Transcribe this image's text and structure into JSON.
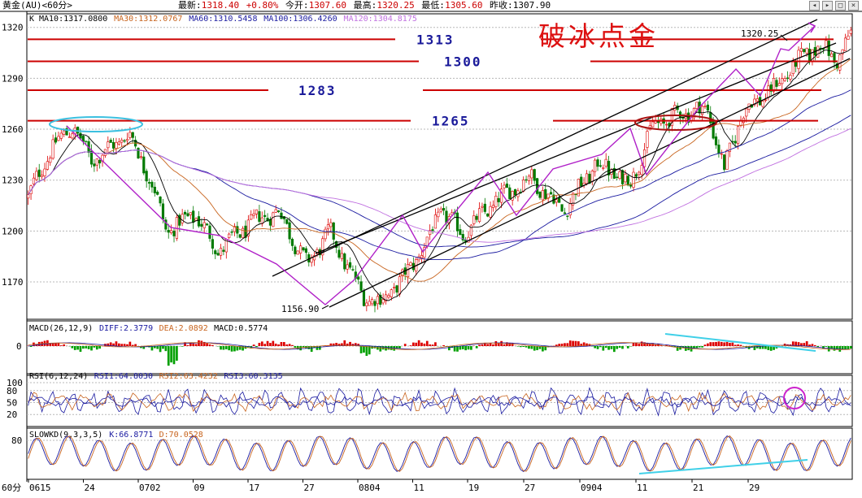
{
  "header": {
    "instrument": "黄金(AU)<60分>",
    "quote_items": [
      {
        "label": "最新:",
        "value": "1318.40",
        "color": "#cc0000"
      },
      {
        "label": "",
        "value": "+0.80%",
        "color": "#cc0000"
      },
      {
        "label": "今开:",
        "value": "1307.60",
        "color": "#cc0000"
      },
      {
        "label": "最高:",
        "value": "1320.25",
        "color": "#cc0000"
      },
      {
        "label": "最低:",
        "value": "1305.60",
        "color": "#cc0000"
      },
      {
        "label": "昨收:",
        "value": "1307.90",
        "color": "#000000"
      }
    ],
    "window_buttons": [
      "◂",
      "▸",
      "□",
      "×"
    ]
  },
  "chart_data": {
    "type": "candlestick",
    "price_panel": {
      "label": "K",
      "ma_legend": [
        {
          "name": "MA10",
          "value": "1317.0800",
          "color": "#000000"
        },
        {
          "name": "MA30",
          "value": "1312.0767",
          "color": "#c8641e"
        },
        {
          "name": "MA60",
          "value": "1310.5458",
          "color": "#1a1aa0"
        },
        {
          "name": "MA100",
          "value": "1306.4260",
          "color": "#1a1aa0"
        },
        {
          "name": "MA120",
          "value": "1304.8175",
          "color": "#c070e0"
        }
      ],
      "y_ticks": [
        1170,
        1200,
        1230,
        1260,
        1290,
        1320
      ],
      "ylim": [
        1148,
        1328
      ],
      "bar_count": 300,
      "price_path": [
        [
          0,
          1220
        ],
        [
          10,
          1248
        ],
        [
          20,
          1262
        ],
        [
          28,
          1242
        ],
        [
          38,
          1250
        ],
        [
          45,
          1258
        ],
        [
          55,
          1230
        ],
        [
          62,
          1200
        ],
        [
          75,
          1210
        ],
        [
          85,
          1188
        ],
        [
          100,
          1205
        ],
        [
          112,
          1212
        ],
        [
          125,
          1180
        ],
        [
          135,
          1200
        ],
        [
          142,
          1182
        ],
        [
          150,
          1162
        ],
        [
          158,
          1158
        ],
        [
          168,
          1172
        ],
        [
          178,
          1192
        ],
        [
          185,
          1212
        ],
        [
          195,
          1198
        ],
        [
          210,
          1218
        ],
        [
          225,
          1232
        ],
        [
          240,
          1212
        ],
        [
          255,
          1240
        ],
        [
          270,
          1228
        ],
        [
          280,
          1262
        ],
        [
          290,
          1268
        ],
        [
          300,
          1272
        ],
        [
          305,
          1270
        ],
        [
          312,
          1236
        ],
        [
          320,
          1270
        ],
        [
          335,
          1285
        ],
        [
          345,
          1300
        ],
        [
          355,
          1310
        ],
        [
          362,
          1300
        ],
        [
          370,
          1318
        ]
      ],
      "annotations": {
        "title": "破冰点金",
        "low_label": "1156.90",
        "high_label": "1320.25"
      },
      "horizontal_levels": [
        {
          "label": "1313",
          "value": 1313
        },
        {
          "label": "1300",
          "value": 1300
        },
        {
          "label": "1283",
          "value": 1283
        },
        {
          "label": "1265",
          "value": 1265
        }
      ]
    },
    "macd_panel": {
      "legend": [
        {
          "name": "MACD(26,12,9)",
          "value": "",
          "color": "#000000"
        },
        {
          "name": "DIFF:",
          "value": "2.3779",
          "color": "#1a1aa0"
        },
        {
          "name": "DEA:",
          "value": "2.0892",
          "color": "#c8641e"
        },
        {
          "name": "MACD:",
          "value": "0.5774",
          "color": "#000000"
        }
      ],
      "y_ticks": [
        0
      ]
    },
    "rsi_panel": {
      "legend": [
        {
          "name": "RSI(6,12,24)",
          "value": "",
          "color": "#000000"
        },
        {
          "name": "RSI1:",
          "value": "64.8030",
          "color": "#1a1aa0"
        },
        {
          "name": "RSI2:",
          "value": "63.4232",
          "color": "#c8641e"
        },
        {
          "name": "RSI3:",
          "value": "60.3135",
          "color": "#1a1aa0"
        }
      ],
      "y_ticks": [
        100,
        80,
        50,
        20
      ]
    },
    "kd_panel": {
      "legend": [
        {
          "name": "SLOWKD(9,3,3,5)",
          "value": "",
          "color": "#000000"
        },
        {
          "name": "K:",
          "value": "66.8771",
          "color": "#1a1aa0"
        },
        {
          "name": "D:",
          "value": "70.0528",
          "color": "#c8641e"
        }
      ],
      "y_ticks": [
        80
      ]
    },
    "x_axis": {
      "corner_label": "60分",
      "labels": [
        "0615",
        "24",
        "0702",
        "09",
        "17",
        "27",
        "0804",
        "11",
        "19",
        "27",
        "0904",
        "11",
        "21",
        "29"
      ]
    }
  }
}
